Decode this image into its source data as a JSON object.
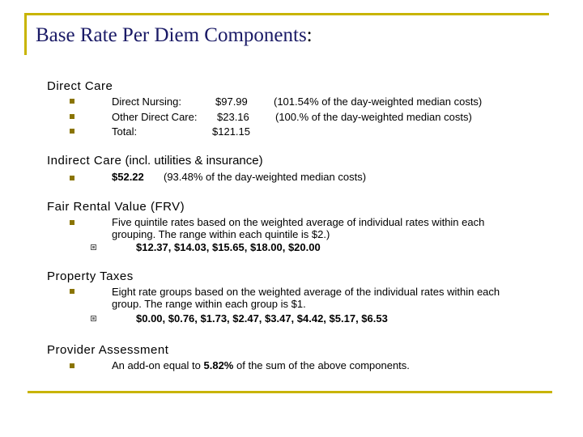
{
  "title": {
    "main": "Base Rate Per Diem Components",
    "colon": ":"
  },
  "direct_care": {
    "heading": "Direct Care",
    "rows": [
      {
        "label": "Direct Nursing:",
        "value": "$97.99",
        "note": "(101.54% of the day-weighted median costs)"
      },
      {
        "label": "Other Direct Care:",
        "value": "$23.16",
        "note": "(100.% of the day-weighted median costs)"
      },
      {
        "label": "Total:",
        "value": "$121.15",
        "note": ""
      }
    ]
  },
  "indirect_care": {
    "heading": "Indirect Care",
    "heading_suffix": "(incl. utilities & insurance)",
    "value": "$52.22",
    "note": "(93.48% of the day-weighted median costs)"
  },
  "frv": {
    "heading": "Fair Rental Value (FRV)",
    "line1": "Five quintile rates based on the weighted average of individual rates within each",
    "line2": "grouping. The range within each quintile is $2.)",
    "rates": "$12.37, $14.03, $15.65, $18.00, $20.00"
  },
  "property_taxes": {
    "heading": "Property Taxes",
    "line1": "Eight rate groups based on the weighted average of the individual rates within each",
    "line2": "group.  The range within each group is $1.",
    "rates": "$0.00, $0.76, $1.73, $2.47, $3.47, $4.42, $5.17, $6.53"
  },
  "provider_assessment": {
    "heading": "Provider Assessment",
    "text_before": "An add-on equal to",
    "percent": "5.82%",
    "text_after": "of the sum of the above components."
  },
  "colors": {
    "title": "#1a1a66",
    "frame": "#c8b400",
    "bullet": "#8a7400"
  }
}
